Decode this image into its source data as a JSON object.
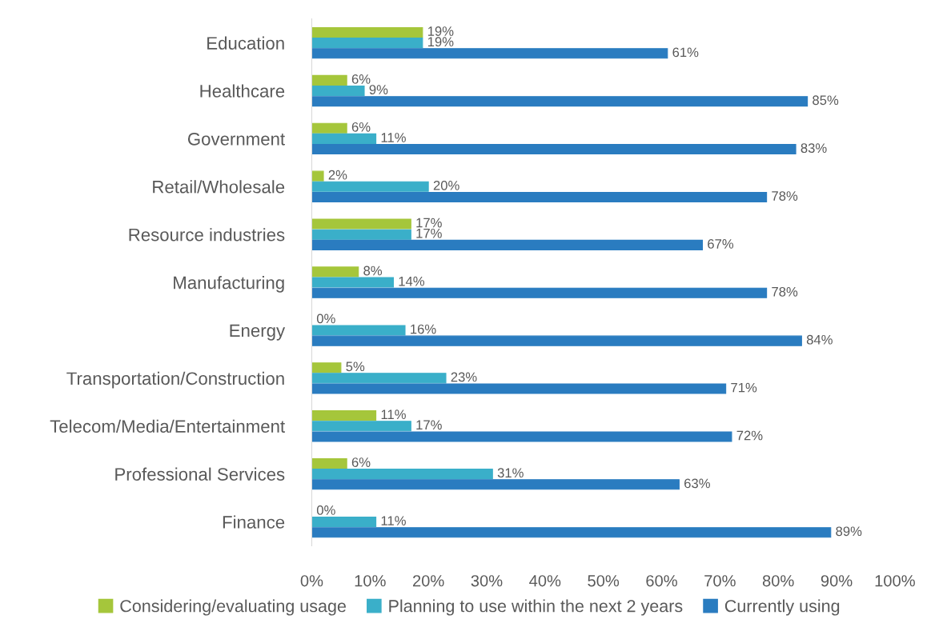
{
  "chart_data": {
    "type": "bar",
    "orientation": "horizontal",
    "categories": [
      "Education",
      "Healthcare",
      "Government",
      "Retail/Wholesale",
      "Resource industries",
      "Manufacturing",
      "Energy",
      "Transportation/Construction",
      "Telecom/Media/Entertainment",
      "Professional Services",
      "Finance"
    ],
    "series": [
      {
        "name": "Considering/evaluating usage",
        "color": "#a5c63b",
        "values": [
          19,
          6,
          6,
          2,
          17,
          8,
          0,
          5,
          11,
          6,
          0
        ],
        "value_labels": [
          "19%",
          "6%",
          "6%",
          "2%",
          "17%",
          "8%",
          "0%",
          "5%",
          "11%",
          "6%",
          "0%"
        ]
      },
      {
        "name": "Planning to use within the next 2 years",
        "color": "#3aafc9",
        "values": [
          19,
          9,
          11,
          20,
          17,
          14,
          16,
          23,
          17,
          31,
          11
        ],
        "value_labels": [
          "19%",
          "9%",
          "11%",
          "20%",
          "17%",
          "14%",
          "16%",
          "23%",
          "17%",
          "31%",
          "11%"
        ]
      },
      {
        "name": "Currently using",
        "color": "#2a7cc0",
        "values": [
          61,
          85,
          83,
          78,
          67,
          78,
          84,
          71,
          72,
          63,
          89
        ],
        "value_labels": [
          "61%",
          "85%",
          "83%",
          "78%",
          "67%",
          "78%",
          "84%",
          "71%",
          "72%",
          "63%",
          "89%"
        ]
      }
    ],
    "xlim": [
      0,
      100
    ],
    "xticks": [
      {
        "value": 0,
        "label": "0%"
      },
      {
        "value": 10,
        "label": "10%"
      },
      {
        "value": 20,
        "label": "20%"
      },
      {
        "value": 30,
        "label": "30%"
      },
      {
        "value": 40,
        "label": "40%"
      },
      {
        "value": 50,
        "label": "50%"
      },
      {
        "value": 60,
        "label": "60%"
      },
      {
        "value": 70,
        "label": "70%"
      },
      {
        "value": 80,
        "label": "80%"
      },
      {
        "value": 90,
        "label": "90%"
      },
      {
        "value": 100,
        "label": "100%"
      }
    ],
    "grid": false,
    "legend": "bottom"
  }
}
